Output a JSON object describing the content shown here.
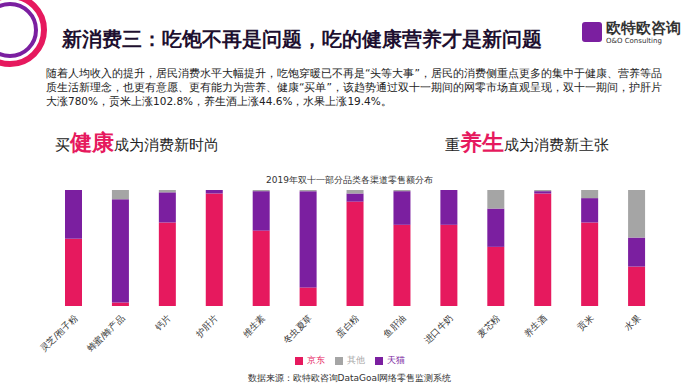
{
  "slide": {
    "title": "新消费三：吃饱不再是问题，吃的健康营养才是新问题",
    "brand": "欧特欧咨询",
    "brand_en": "O&O Consulting",
    "intro": "随着人均收入的提升，居民消费水平大幅提升，吃饱穿暖已不再是“头等大事”，居民的消费侧重点更多的集中于健康、营养等品质生活新理念，也更有意愿、更有能力为营养、健康“买单”，该趋势通过双十一期间的网零市场直观呈现，双十一期间，护肝片大涨780%，贡米上涨102.8%，养生酒上涨44.6%，水果上涨19.4%。",
    "left_heading": "买健康成为消费新时尚",
    "left_highlight": "健康",
    "right_heading": "重养生成为消费新主张",
    "right_highlight": "养生",
    "source": "数据来源：欧特欧咨询DataGoal网络零售监测系统"
  },
  "chart_data": {
    "type": "bar",
    "title": "2019年双十一部分品类各渠道零售额分布",
    "stacked": true,
    "categories": [
      "灵芝/孢子粉",
      "蜂蜜/蜂产品",
      "钙片",
      "护肝片",
      "维生素",
      "冬虫夏草",
      "蛋白粉",
      "鱼肝油",
      "进口牛奶",
      "麦芯粉",
      "养生酒",
      "贡米",
      "水果"
    ],
    "series": [
      {
        "name": "京东",
        "color": "#e6195e",
        "values": [
          58,
          3,
          72,
          97,
          65,
          16,
          90,
          70,
          70,
          51,
          97,
          72,
          34
        ]
      },
      {
        "name": "天猫",
        "color": "#7b1fa0",
        "values": [
          42,
          89,
          26,
          3,
          34,
          83,
          7,
          29,
          30,
          33,
          2,
          21,
          25
        ]
      },
      {
        "name": "其他",
        "color": "#a5a5a5",
        "values": [
          0,
          8,
          2,
          0,
          1,
          1,
          3,
          1,
          0,
          16,
          1,
          7,
          41
        ]
      }
    ],
    "ylim": [
      0,
      100
    ],
    "tick_labels": "x",
    "legend": "bottom"
  }
}
